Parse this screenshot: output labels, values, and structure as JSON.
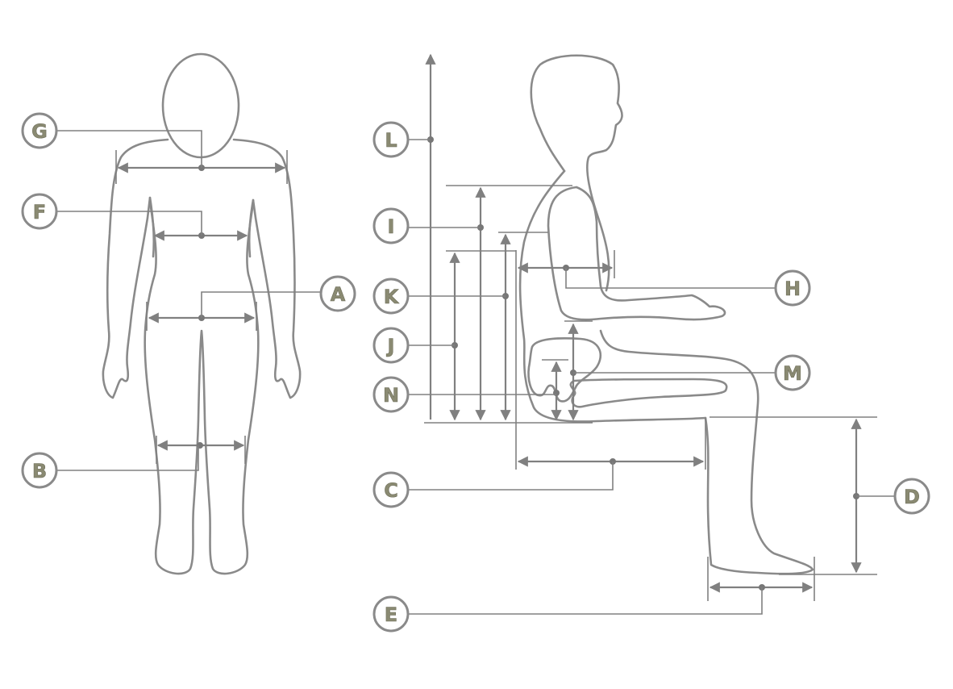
{
  "labels": {
    "A": "A",
    "B": "B",
    "C": "C",
    "D": "D",
    "E": "E",
    "F": "F",
    "G": "G",
    "H": "H",
    "I": "I",
    "J": "J",
    "K": "K",
    "L": "L",
    "M": "M",
    "N": "N"
  },
  "colors": {
    "line": "#8a8a8a",
    "dimension": "#808080",
    "label_text": "#8a8a72",
    "background": "#ffffff"
  }
}
